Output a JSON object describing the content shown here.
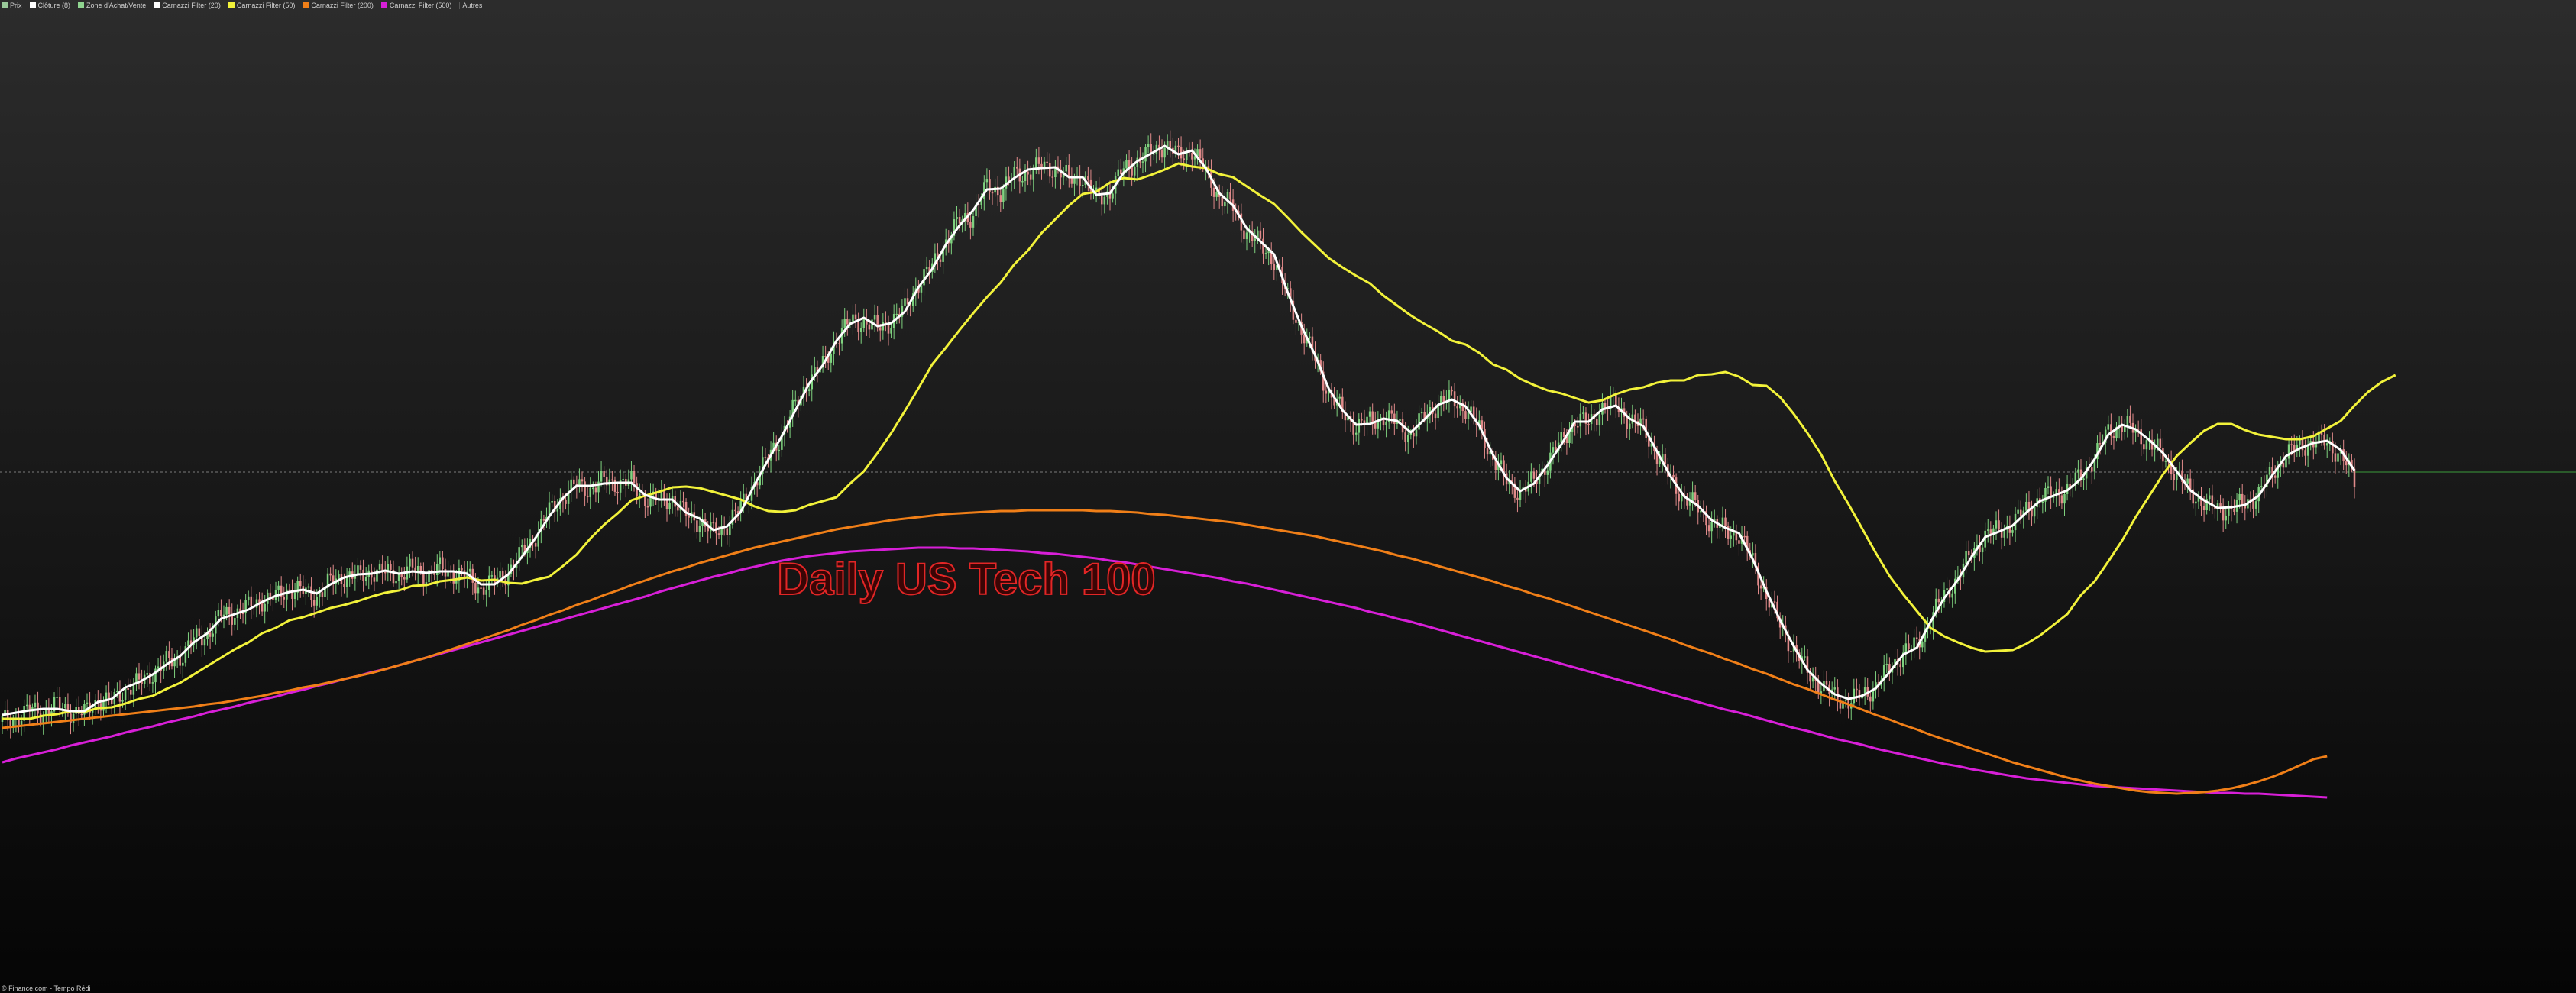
{
  "legend": {
    "items": [
      {
        "label": "Prix",
        "color": "#9ac99a"
      },
      {
        "label": "Clôture (8)",
        "color": "#ffffff"
      },
      {
        "label": "Zone d'Achat/Vente",
        "color": "#8fd48f"
      },
      {
        "label": "Carnazzi Filter (20)",
        "color": "#ffffff"
      },
      {
        "label": "Carnazzi Filter (50)",
        "color": "#f2f23a"
      },
      {
        "label": "Carnazzi Filter (200)",
        "color": "#f07f18"
      },
      {
        "label": "Carnazzi Filter (500)",
        "color": "#d81fd8"
      }
    ],
    "more_label": "Autres"
  },
  "watermark": "Daily US Tech 100",
  "footer": "© Finance.com - Tempo Rédi",
  "colors": {
    "up_candle": "#7fd27f",
    "down_candle": "#e08a8a",
    "filter_20": "#ffffff",
    "filter_50": "#f2f23a",
    "filter_200": "#f07f18",
    "filter_500": "#d81fd8",
    "reference_line": "#7a7a7a",
    "reference_line_right": "#3c9a3c",
    "watermark": "#e32626"
  },
  "chart_data": {
    "type": "candlestick",
    "title": "Daily US Tech 100",
    "axes": "none shown",
    "grid": false,
    "legend_placement": "top-left",
    "series": [
      {
        "name": "Carnazzi Filter (20)",
        "values": [
          364,
          367,
          370,
          372,
          372,
          369,
          369,
          381,
          385,
          400,
          407,
          417,
          430,
          441,
          459,
          471,
          490,
          496,
          502,
          512,
          520,
          525,
          528,
          523,
          535,
          544,
          548,
          549,
          553,
          549,
          552,
          550,
          552,
          552,
          549,
          535,
          535,
          548,
          571,
          596,
          624,
          648,
          664,
          664,
          667,
          668,
          668,
          652,
          646,
          646,
          629,
          621,
          606,
          611,
          630,
          665,
          698,
          729,
          763,
          798,
          822,
          854,
          876,
          884,
          873,
          877,
          892,
          924,
          948,
          980,
          1005,
          1025,
          1052,
          1053,
          1067,
          1078,
          1080,
          1081,
          1068,
          1068,
          1045,
          1047,
          1074,
          1089,
          1099,
          1109,
          1098,
          1103,
          1080,
          1047,
          1031,
          1001,
          984,
          967,
          917,
          873,
          835,
          791,
          763,
          744,
          745,
          752,
          749,
          734,
          751,
          770,
          777,
          768,
          743,
          705,
          674,
          657,
          667,
          691,
          718,
          748,
          748,
          764,
          769,
          752,
          742,
          709,
          676,
          650,
          638,
          619,
          609,
          602,
          568,
          526,
          488,
          454,
          423,
          405,
          391,
          385,
          389,
          399,
          420,
          443,
          452,
          486,
          517,
          541,
          571,
          597,
          604,
          612,
          629,
          644,
          651,
          658,
          673,
          699,
          731,
          744,
          738,
          724,
          707,
          683,
          658,
          645,
          635,
          636,
          639,
          651,
          678,
          703,
          713,
          720,
          723,
          711,
          684
        ]
      },
      {
        "name": "Carnazzi Filter (50)",
        "values": [
          359,
          359,
          359,
          363,
          365,
          369,
          368,
          373,
          374,
          379,
          385,
          389,
          398,
          406,
          417,
          428,
          439,
          450,
          459,
          471,
          478,
          488,
          492,
          498,
          504,
          508,
          513,
          519,
          524,
          527,
          533,
          534,
          539,
          541,
          544,
          540,
          541,
          537,
          536,
          541,
          545,
          559,
          574,
          595,
          613,
          628,
          645,
          651,
          656,
          662,
          663,
          661,
          656,
          651,
          646,
          637,
          631,
          630,
          632,
          639,
          644,
          649,
          667,
          683,
          707,
          733,
          762,
          792,
          823,
          845,
          868,
          890,
          911,
          930,
          954,
          972,
          995,
          1013,
          1031,
          1046,
          1049,
          1061,
          1067,
          1065,
          1071,
          1078,
          1086,
          1082,
          1080,
          1072,
          1068,
          1056,
          1044,
          1033,
          1015,
          996,
          979,
          962,
          950,
          939,
          929,
          913,
          900,
          887,
          876,
          866,
          854,
          849,
          838,
          823,
          816,
          804,
          796,
          789,
          785,
          779,
          773,
          776,
          784,
          790,
          793,
          799,
          802,
          802,
          809,
          810,
          813,
          807,
          796,
          795,
          780,
          758,
          733,
          705,
          670,
          640,
          608,
          576,
          546,
          522,
          500,
          478,
          467,
          459,
          452,
          447,
          448,
          449,
          457,
          468,
          482,
          496,
          521,
          539,
          565,
          592,
          623,
          651,
          679,
          703,
          720,
          736,
          745,
          745,
          737,
          731,
          728,
          725,
          725,
          729,
          739,
          749,
          769,
          787,
          800,
          809
        ]
      },
      {
        "name": "Carnazzi Filter (200)",
        "values": [
          347,
          349,
          351,
          353,
          355,
          357,
          359,
          361,
          363,
          365,
          367,
          369,
          371,
          373,
          375,
          378,
          380,
          383,
          386,
          389,
          393,
          396,
          400,
          403,
          407,
          411,
          415,
          419,
          424,
          429,
          434,
          439,
          445,
          451,
          457,
          463,
          469,
          475,
          482,
          488,
          495,
          501,
          508,
          514,
          521,
          527,
          534,
          540,
          546,
          552,
          557,
          563,
          568,
          573,
          578,
          583,
          587,
          591,
          595,
          599,
          603,
          607,
          610,
          613,
          616,
          619,
          621,
          623,
          625,
          627,
          628,
          629,
          630,
          631,
          631,
          632,
          632,
          632,
          632,
          632,
          631,
          631,
          630,
          629,
          627,
          626,
          624,
          622,
          620,
          618,
          616,
          613,
          610,
          607,
          604,
          601,
          598,
          594,
          590,
          586,
          582,
          578,
          573,
          569,
          564,
          559,
          554,
          549,
          544,
          539,
          533,
          528,
          522,
          517,
          511,
          505,
          499,
          493,
          487,
          481,
          475,
          469,
          463,
          456,
          450,
          444,
          437,
          431,
          424,
          418,
          411,
          404,
          398,
          391,
          384,
          378,
          371,
          364,
          358,
          351,
          345,
          338,
          332,
          326,
          320,
          314,
          308,
          302,
          297,
          292,
          287,
          282,
          278,
          274,
          271,
          268,
          265,
          263,
          262,
          261,
          262,
          263,
          265,
          268,
          272,
          277,
          283,
          290,
          298,
          306,
          310
        ]
      },
      {
        "name": "Carnazzi Filter (500)",
        "values": [
          302,
          307,
          311,
          315,
          319,
          324,
          328,
          332,
          336,
          341,
          345,
          349,
          354,
          358,
          362,
          367,
          371,
          375,
          380,
          384,
          388,
          393,
          397,
          402,
          406,
          411,
          415,
          420,
          424,
          429,
          434,
          439,
          444,
          449,
          454,
          459,
          464,
          469,
          474,
          479,
          484,
          489,
          494,
          499,
          504,
          509,
          514,
          519,
          525,
          530,
          535,
          540,
          545,
          549,
          554,
          558,
          562,
          566,
          569,
          572,
          574,
          576,
          578,
          579,
          580,
          581,
          582,
          583,
          583,
          583,
          582,
          582,
          581,
          580,
          579,
          578,
          576,
          575,
          573,
          571,
          569,
          566,
          564,
          561,
          558,
          555,
          552,
          549,
          546,
          543,
          539,
          536,
          532,
          528,
          524,
          520,
          516,
          512,
          508,
          504,
          499,
          495,
          490,
          486,
          481,
          476,
          471,
          466,
          461,
          456,
          451,
          446,
          441,
          436,
          431,
          426,
          421,
          416,
          411,
          406,
          401,
          396,
          391,
          386,
          381,
          376,
          371,
          367,
          362,
          357,
          352,
          347,
          343,
          338,
          333,
          329,
          325,
          320,
          316,
          312,
          308,
          304,
          300,
          297,
          293,
          290,
          287,
          284,
          281,
          279,
          277,
          275,
          273,
          271,
          270,
          269,
          268,
          267,
          266,
          265,
          264,
          263,
          262,
          262,
          261,
          261,
          260,
          259,
          258,
          257,
          256
        ]
      },
      {
        "name": "Prix (close, approx)",
        "values": [
          355,
          360,
          370,
          368,
          376,
          370,
          365,
          385,
          380,
          398,
          405,
          420,
          432,
          440,
          462,
          470,
          494,
          498,
          505,
          515,
          518,
          530,
          525,
          520,
          538,
          546,
          545,
          552,
          550,
          548,
          555,
          548,
          555,
          550,
          545,
          530,
          538,
          552,
          575,
          600,
          630,
          650,
          665,
          660,
          670,
          668,
          668,
          648,
          645,
          648,
          625,
          618,
          602,
          614,
          635,
          670,
          700,
          732,
          768,
          805,
          820,
          858,
          878,
          880,
          870,
          880,
          895,
          930,
          950,
          985,
          1010,
          1020,
          1055,
          1050,
          1070,
          1075,
          1082,
          1080,
          1065,
          1070,
          1040,
          1050,
          1078,
          1090,
          1100,
          1112,
          1095,
          1105,
          1075,
          1042,
          1028,
          995,
          980,
          960,
          910,
          868,
          830,
          785,
          760,
          742,
          748,
          755,
          745,
          730,
          755,
          772,
          778,
          765,
          740,
          700,
          670,
          655,
          670,
          695,
          722,
          750,
          745,
          768,
          770,
          750,
          740,
          705,
          672,
          648,
          635,
          615,
          606,
          600,
          565,
          520,
          482,
          450,
          420,
          402,
          388,
          382,
          390,
          402,
          425,
          446,
          455,
          490,
          520,
          545,
          575,
          600,
          605,
          615,
          632,
          648,
          652,
          660,
          676,
          702,
          735,
          745,
          735,
          720,
          703,
          680,
          655,
          642,
          632,
          635,
          640,
          655,
          680,
          705,
          715,
          722,
          720,
          705,
          670
        ]
      }
    ]
  }
}
